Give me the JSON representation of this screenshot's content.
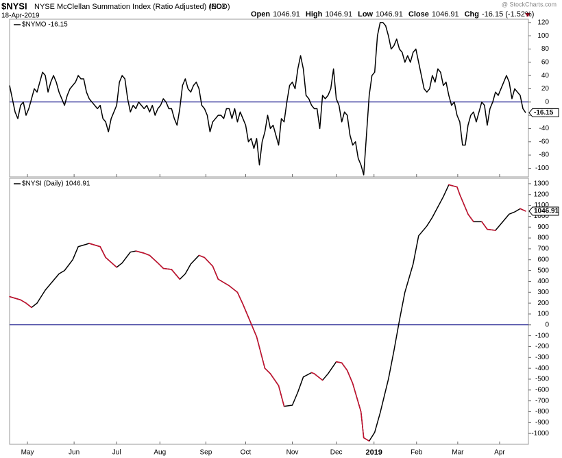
{
  "header": {
    "symbol": "$NYSI",
    "name": "NYSE McClellan Summation Index (Ratio Adjusted) (EOD)",
    "exchange": "INDX",
    "date": "18-Apr-2019",
    "watermark": "@ StockCharts.com",
    "quote": [
      {
        "label": "Open",
        "value": "1046.91"
      },
      {
        "label": "High",
        "value": "1046.91"
      },
      {
        "label": "Low",
        "value": "1046.91"
      },
      {
        "label": "Close",
        "value": "1046.91"
      },
      {
        "label": "Chg",
        "value": "-16.15 (-1.52%)"
      }
    ]
  },
  "chart_data": [
    {
      "type": "line",
      "title": "$NYMO -16.15",
      "zero_line": true,
      "zero_color": "#000080",
      "xlim": [
        0,
        189
      ],
      "ylim": [
        -113,
        125
      ],
      "yticks": [
        -100,
        -80,
        -60,
        -40,
        -20,
        0,
        20,
        40,
        60,
        80,
        100,
        120
      ],
      "x": [
        0,
        1,
        2,
        3,
        4,
        5,
        6,
        7,
        8,
        9,
        10,
        11,
        12,
        13,
        14,
        15,
        16,
        17,
        18,
        19,
        20,
        21,
        22,
        23,
        24,
        25,
        26,
        27,
        28,
        29,
        30,
        31,
        32,
        33,
        34,
        35,
        36,
        37,
        38,
        39,
        40,
        41,
        42,
        43,
        44,
        45,
        46,
        47,
        48,
        49,
        50,
        51,
        52,
        53,
        54,
        55,
        56,
        57,
        58,
        59,
        60,
        61,
        62,
        63,
        64,
        65,
        66,
        67,
        68,
        69,
        70,
        71,
        72,
        73,
        74,
        75,
        76,
        77,
        78,
        79,
        80,
        81,
        82,
        83,
        84,
        85,
        86,
        87,
        88,
        89,
        90,
        91,
        92,
        93,
        94,
        95,
        96,
        97,
        98,
        99,
        100,
        101,
        102,
        103,
        104,
        105,
        106,
        107,
        108,
        109,
        110,
        111,
        112,
        113,
        114,
        115,
        116,
        117,
        118,
        119,
        120,
        121,
        122,
        123,
        124,
        125,
        126,
        127,
        128,
        129,
        130,
        131,
        132,
        133,
        134,
        135,
        136,
        137,
        138,
        139,
        140,
        141,
        142,
        143,
        144,
        145,
        146,
        147,
        148,
        149,
        150,
        151,
        152,
        153,
        154,
        155,
        156,
        157,
        158,
        159,
        160,
        161,
        162,
        163,
        164,
        165,
        166,
        167,
        168,
        169,
        170,
        171,
        172,
        173,
        174,
        175,
        176,
        177,
        178,
        179,
        180,
        181,
        182,
        183,
        184,
        185,
        186,
        187,
        188
      ],
      "series": [
        {
          "name": "$NYMO",
          "color": "#000000",
          "values": [
            25,
            5,
            -15,
            -25,
            -5,
            0,
            -20,
            -10,
            5,
            20,
            15,
            30,
            45,
            40,
            15,
            30,
            40,
            30,
            15,
            5,
            -5,
            10,
            20,
            25,
            30,
            40,
            35,
            35,
            15,
            5,
            0,
            -5,
            -10,
            -5,
            -25,
            -30,
            -45,
            -25,
            -15,
            -5,
            30,
            40,
            35,
            5,
            -15,
            -5,
            -10,
            0,
            -5,
            -10,
            -5,
            -15,
            -5,
            -20,
            -10,
            -5,
            5,
            0,
            -10,
            -10,
            -25,
            -35,
            -10,
            25,
            35,
            20,
            15,
            25,
            30,
            20,
            -5,
            -10,
            -20,
            -45,
            -30,
            -25,
            -20,
            -20,
            -25,
            -10,
            -10,
            -25,
            -10,
            -30,
            -15,
            -25,
            -35,
            -60,
            -55,
            -70,
            -55,
            -95,
            -60,
            -45,
            -20,
            -40,
            -35,
            -50,
            -65,
            -25,
            -30,
            0,
            25,
            30,
            20,
            50,
            70,
            50,
            10,
            5,
            -5,
            -10,
            -10,
            -40,
            10,
            5,
            10,
            20,
            50,
            5,
            -5,
            -30,
            -15,
            -20,
            -50,
            -65,
            -60,
            -85,
            -95,
            -110,
            -50,
            10,
            40,
            45,
            100,
            120,
            120,
            115,
            100,
            80,
            85,
            95,
            80,
            75,
            60,
            70,
            60,
            75,
            80,
            60,
            40,
            20,
            15,
            20,
            40,
            30,
            50,
            45,
            25,
            30,
            10,
            -5,
            0,
            -20,
            -30,
            -65,
            -65,
            -35,
            -20,
            -15,
            -30,
            -15,
            0,
            -5,
            -35,
            -10,
            0,
            15,
            10,
            20,
            30,
            40,
            30,
            5,
            20,
            15,
            10,
            -10,
            -16.15
          ]
        }
      ]
    },
    {
      "type": "line",
      "title": "$NYSI (Daily) 1046.91",
      "zero_line": true,
      "zero_color": "#000080",
      "xlim": [
        0,
        189
      ],
      "ylim": [
        -1100,
        1350
      ],
      "yticks": [
        -1000,
        -900,
        -800,
        -700,
        -600,
        -500,
        -400,
        -300,
        -200,
        -100,
        0,
        100,
        200,
        300,
        400,
        500,
        600,
        700,
        800,
        900,
        1000,
        1100,
        1200,
        1300
      ],
      "xticks": [
        {
          "value": 6.5,
          "label": "May"
        },
        {
          "value": 23.5,
          "label": "Jun"
        },
        {
          "value": 39,
          "label": "Jul"
        },
        {
          "value": 54.75,
          "label": "Aug"
        },
        {
          "value": 71.5,
          "label": "Sep"
        },
        {
          "value": 86,
          "label": "Oct"
        },
        {
          "value": 103,
          "label": "Nov"
        },
        {
          "value": 119,
          "label": "Dec"
        },
        {
          "value": 132.75,
          "label": "2019"
        },
        {
          "value": 148.25,
          "label": "Feb"
        },
        {
          "value": 163.25,
          "label": "Mar"
        },
        {
          "value": 178.5,
          "label": "Apr"
        }
      ],
      "x": [
        0,
        4,
        6,
        8,
        10,
        13,
        15,
        18,
        20,
        23,
        25,
        29,
        33,
        35,
        39,
        41,
        44,
        46,
        49,
        51,
        54,
        56,
        59,
        62,
        64,
        66,
        69,
        71,
        74,
        76,
        80,
        83,
        85,
        88,
        90,
        93,
        95,
        98,
        100,
        103,
        105,
        107,
        110,
        111,
        114,
        116,
        119,
        121,
        123,
        125,
        128,
        129,
        131,
        133,
        135,
        138,
        140,
        142,
        144,
        147,
        149,
        152,
        154,
        158,
        160,
        163,
        164,
        167,
        169,
        172,
        174,
        177,
        179,
        182,
        184,
        186,
        188
      ],
      "series": [
        {
          "name": "$NYSI",
          "color": "#000000",
          "down_color": "#c8102e",
          "values": [
            260,
            230,
            200,
            160,
            200,
            320,
            380,
            470,
            500,
            600,
            720,
            750,
            720,
            620,
            530,
            570,
            670,
            680,
            660,
            640,
            570,
            520,
            510,
            420,
            470,
            560,
            640,
            620,
            540,
            420,
            360,
            300,
            190,
            10,
            -110,
            -400,
            -450,
            -560,
            -750,
            -740,
            -620,
            -480,
            -440,
            -450,
            -510,
            -450,
            -340,
            -350,
            -420,
            -540,
            -800,
            -1040,
            -1070,
            -990,
            -810,
            -500,
            -240,
            40,
            300,
            560,
            820,
            910,
            990,
            1180,
            1290,
            1270,
            1200,
            1020,
            950,
            950,
            880,
            870,
            930,
            1020,
            1040,
            1070,
            1046.91
          ]
        }
      ]
    }
  ]
}
